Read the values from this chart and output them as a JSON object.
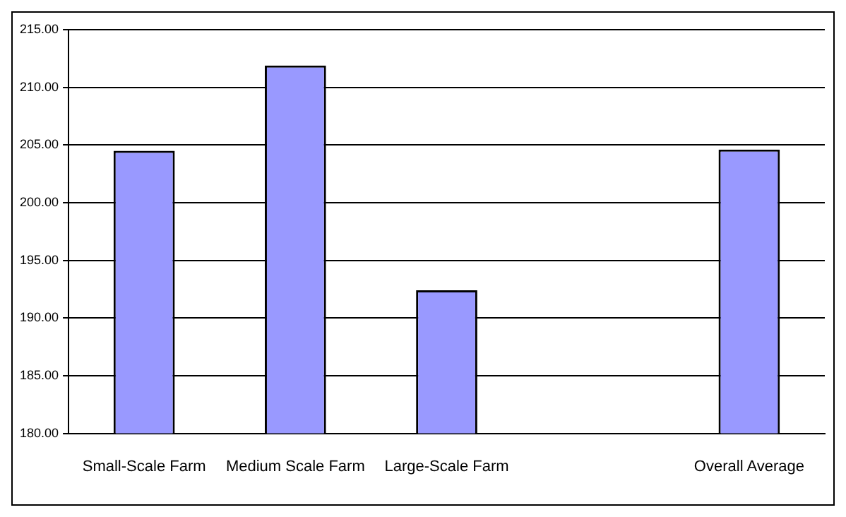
{
  "chart_data": {
    "type": "bar",
    "categories": [
      "Small-Scale Farm",
      "Medium Scale Farm",
      "Large-Scale Farm",
      null,
      "Overall Average"
    ],
    "values": [
      204.5,
      211.9,
      192.4,
      null,
      204.6
    ],
    "color": "#9999ff",
    "ylim": [
      180,
      215
    ],
    "yticks": [
      {
        "value": 180,
        "label": "180.00"
      },
      {
        "value": 185,
        "label": "185.00"
      },
      {
        "value": 190,
        "label": "190.00"
      },
      {
        "value": 195,
        "label": "195.00"
      },
      {
        "value": 200,
        "label": "200.00"
      },
      {
        "value": 205,
        "label": "205.00"
      },
      {
        "value": 210,
        "label": "210.00"
      },
      {
        "value": 215,
        "label": "215.00"
      }
    ],
    "grid": "y",
    "legend": false
  }
}
